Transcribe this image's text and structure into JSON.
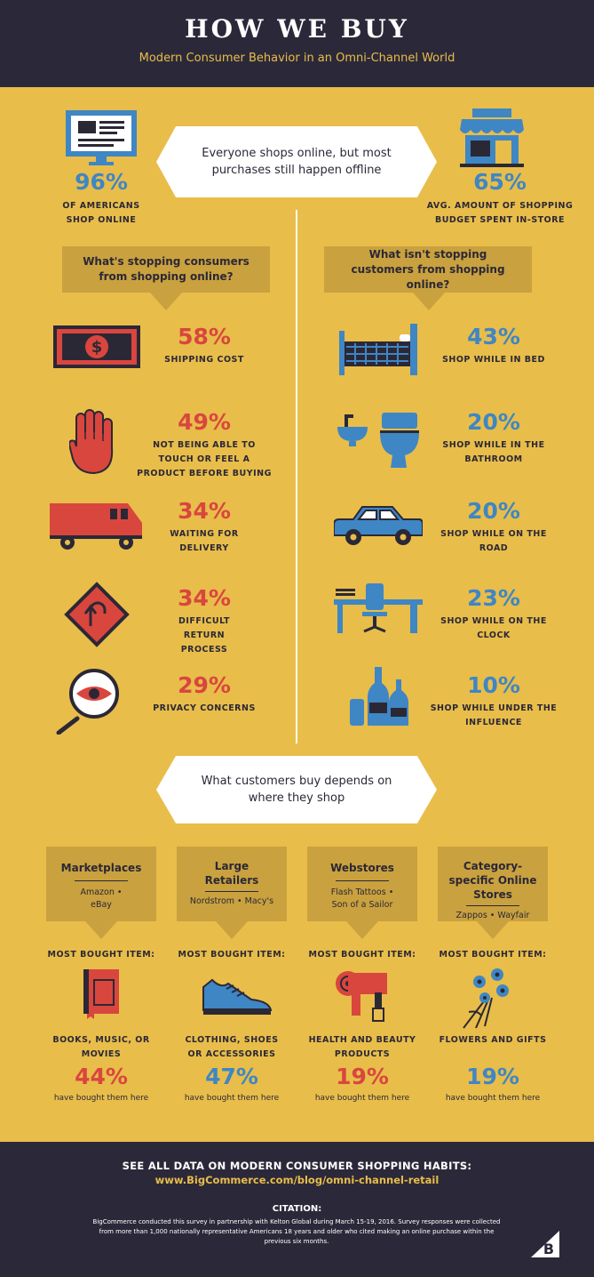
{
  "header": {
    "title": "HOW WE BUY",
    "subtitle": "Modern Consumer Behavior in an Omni-Channel World"
  },
  "intro": {
    "banner": "Everyone shops online, but most purchases still happen offline",
    "left": {
      "value": "96%",
      "label": "OF AMERICANS SHOP ONLINE",
      "icon": "computer-icon"
    },
    "right": {
      "value": "65%",
      "label": "AVG. AMOUNT OF SHOPPING BUDGET SPENT IN-STORE",
      "icon": "store-icon"
    }
  },
  "questions": {
    "left": "What's stopping consumers from shopping online?",
    "right": "What isn't stopping customers from shopping online?"
  },
  "barriers": [
    {
      "value": "58%",
      "label": "SHIPPING COST",
      "icon": "dollar-bill-icon"
    },
    {
      "value": "49%",
      "label": "NOT BEING ABLE TO TOUCH OR FEEL A PRODUCT BEFORE BUYING",
      "icon": "hand-icon"
    },
    {
      "value": "34%",
      "label": "WAITING FOR DELIVERY",
      "icon": "delivery-truck-icon"
    },
    {
      "value": "34%",
      "label": "DIFFICULT RETURN PROCESS",
      "icon": "return-sign-icon"
    },
    {
      "value": "29%",
      "label": "PRIVACY CONCERNS",
      "icon": "magnifier-eye-icon"
    }
  ],
  "places": [
    {
      "value": "43%",
      "label": "SHOP WHILE IN BED",
      "icon": "bed-icon"
    },
    {
      "value": "20%",
      "label": "SHOP WHILE IN THE BATHROOM",
      "icon": "bathroom-icon"
    },
    {
      "value": "20%",
      "label": "SHOP WHILE ON THE ROAD",
      "icon": "car-icon"
    },
    {
      "value": "23%",
      "label": "SHOP WHILE ON THE CLOCK",
      "icon": "desk-icon"
    },
    {
      "value": "10%",
      "label": "SHOP WHILE UNDER THE INFLUENCE",
      "icon": "bottles-icon"
    }
  ],
  "banner2": "What customers buy depends on where they shop",
  "most_bought_label": "MOST BOUGHT ITEM:",
  "bought_suffix": "have bought them here",
  "channels": [
    {
      "title": "Marketplaces",
      "sub": "Amazon • eBay",
      "item": "BOOKS, MUSIC, OR MOVIES",
      "value": "44%",
      "color": "#d9463e",
      "icon": "book-icon"
    },
    {
      "title": "Large Retailers",
      "sub": "Nordstrom • Macy's",
      "item": "CLOTHING, SHOES OR ACCESSORIES",
      "value": "47%",
      "color": "#3f86c4",
      "icon": "shoe-icon"
    },
    {
      "title": "Webstores",
      "sub": "Flash Tattoos • Son of a Sailor",
      "item": "HEALTH AND BEAUTY PRODUCTS",
      "value": "19%",
      "color": "#d9463e",
      "icon": "hairdryer-icon"
    },
    {
      "title": "Category-specific Online Stores",
      "sub": "Zappos • Wayfair",
      "item": "FLOWERS AND GIFTS",
      "value": "19%",
      "color": "#3f86c4",
      "icon": "flowers-icon"
    }
  ],
  "footer": {
    "cta": "SEE ALL DATA ON MODERN CONSUMER SHOPPING HABITS:",
    "url": "www.BigCommerce.com/blog/omni-channel-retail",
    "citation_title": "CITATION:",
    "citation": "BigCommerce conducted this survey in partnership with Kelton Global during March 15-19, 2016. Survey responses were collected from more than 1,000 nationally representative Americans 18 years and older who cited making an online purchase within the previous six months."
  }
}
